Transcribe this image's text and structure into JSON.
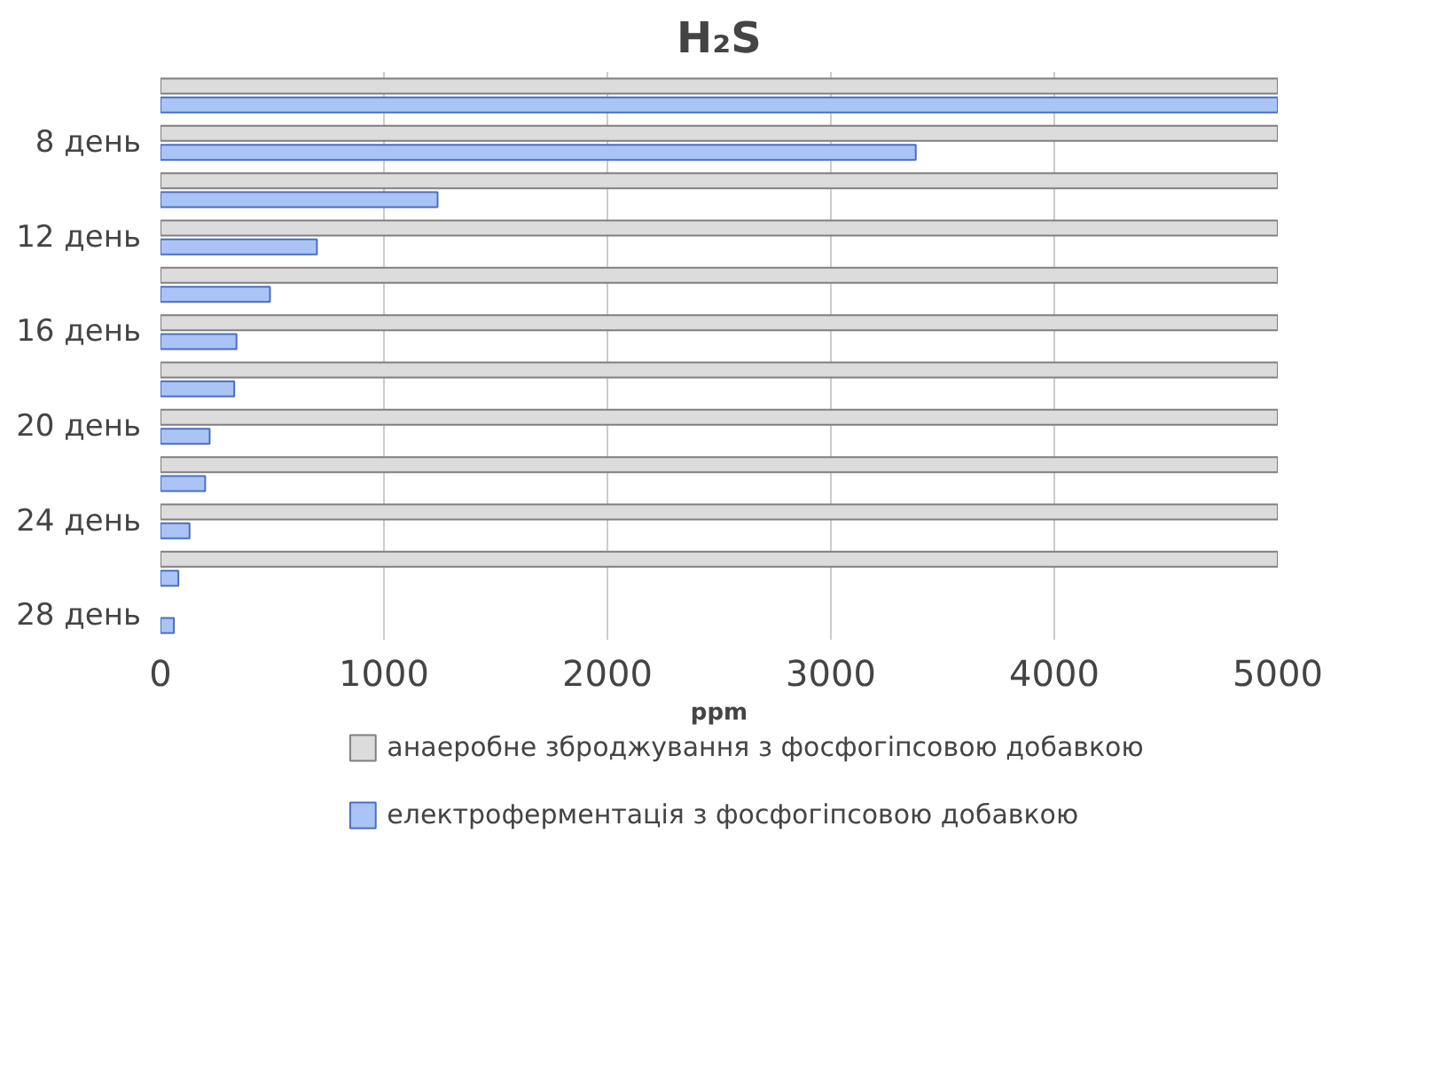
{
  "chart_data": {
    "type": "bar",
    "orientation": "horizontal",
    "title": "H₂S",
    "xlabel": "ppm",
    "categories": [
      null,
      "8 день",
      null,
      "12 день",
      null,
      "16 день",
      null,
      "20 день",
      null,
      "24 день",
      null,
      "28 день"
    ],
    "series": [
      {
        "name": "анаеробне зброджування з фосфогіпсовою добавкою",
        "color": "#dcdcdc",
        "values": [
          5000,
          5000,
          5000,
          5000,
          5000,
          5000,
          5000,
          5000,
          5000,
          5000,
          5000,
          null
        ]
      },
      {
        "name": "електроферментація з фосфогіпсовою добавкою",
        "color": "#aac4f5",
        "values": [
          5000,
          3380,
          1240,
          700,
          490,
          340,
          330,
          220,
          200,
          130,
          80,
          60
        ]
      }
    ],
    "xlim": [
      0,
      5000
    ],
    "xticks": [
      0,
      1000,
      2000,
      3000,
      4000,
      5000
    ],
    "grid": "x",
    "legend": "bottom"
  }
}
